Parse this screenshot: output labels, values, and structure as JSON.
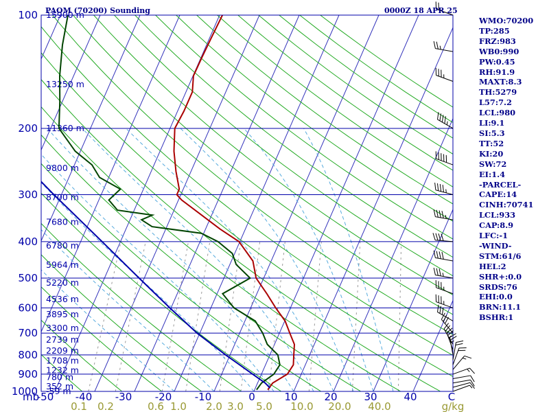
{
  "header": {
    "station": "PAOM (70200) Sounding",
    "datetime": "0000Z 18 APR 25"
  },
  "stats": [
    "WMO:70200",
    "TP:285",
    "FRZ:983",
    "WB0:990",
    "PW:0.45",
    "RH:91.9",
    "MAXT:8.3",
    "TH:5279",
    "L57:7.2",
    "LCL:980",
    "LI:9.1",
    "SI:5.3",
    "TT:52",
    "KI:20",
    "SW:72",
    "EI:1.4",
    "-PARCEL-",
    "CAPE:14",
    "CINH:70741",
    "LCL:933",
    "CAP:8.9",
    "LFC:-1",
    "-WIND-",
    "STM:61/6",
    "HEL:2",
    "SHR+:0.0",
    "SRDS:76",
    "EHI:0.0",
    "BRN:11.1",
    "BSHR:1"
  ],
  "colors": {
    "isobar": "#0000aa",
    "isotherm": "#3333bb",
    "dry_adiabat": "#22aa22",
    "moist_adiabat": "#55aadd",
    "mixing_ratio": "#999999",
    "temperature": "#aa0000",
    "dewpoint": "#004400",
    "parcel": "#0000aa",
    "wind_barb": "#000000"
  },
  "chart_data": {
    "type": "line",
    "diagram": "skew-T log-P",
    "y_axis": {
      "label": "mb",
      "scale": "log",
      "range": [
        1000,
        100
      ]
    },
    "pressure_ticks": [
      1000,
      900,
      800,
      700,
      600,
      500,
      400,
      300,
      200,
      100
    ],
    "x_axis": {
      "range": [
        -50,
        50
      ],
      "ticks": [
        "-50",
        "-40",
        "-30",
        "-20",
        "-10",
        "0",
        "10",
        "20",
        "30",
        "40",
        "C"
      ]
    },
    "mixing_ratio_ticks": [
      "0.1",
      "0.2",
      "0.6",
      "1.0",
      "2.0",
      "3.0",
      "5.0",
      "10.0",
      "20.0",
      "40.0",
      "g/kg"
    ],
    "height_labels": [
      {
        "p": 1000,
        "label": "-59 m"
      },
      {
        "p": 970,
        "label": "352 m"
      },
      {
        "p": 918,
        "label": "780 m"
      },
      {
        "p": 880,
        "label": "1232 m"
      },
      {
        "p": 830,
        "label": "1708 m"
      },
      {
        "p": 780,
        "label": "2209 m"
      },
      {
        "p": 730,
        "label": "2739 m"
      },
      {
        "p": 680,
        "label": "3300 m"
      },
      {
        "p": 625,
        "label": "3895 m"
      },
      {
        "p": 570,
        "label": "4536 m"
      },
      {
        "p": 515,
        "label": "5220 m"
      },
      {
        "p": 462,
        "label": "5964 m"
      },
      {
        "p": 410,
        "label": "6780 m"
      },
      {
        "p": 355,
        "label": "7680 m"
      },
      {
        "p": 305,
        "label": "8700 m"
      },
      {
        "p": 255,
        "label": "9800 m"
      },
      {
        "p": 200,
        "label": "11360 m"
      },
      {
        "p": 153,
        "label": "13250 m"
      },
      {
        "p": 100,
        "label": "15900 m"
      }
    ],
    "series": [
      {
        "key": "temperature",
        "points": [
          [
            990,
            3.3
          ],
          [
            950,
            3.8
          ],
          [
            900,
            6.5
          ],
          [
            850,
            7.0
          ],
          [
            800,
            6.0
          ],
          [
            750,
            5.0
          ],
          [
            700,
            2.6
          ],
          [
            650,
            0.1
          ],
          [
            600,
            -3.7
          ],
          [
            550,
            -7.5
          ],
          [
            500,
            -11.9
          ],
          [
            450,
            -14.6
          ],
          [
            400,
            -20.2
          ],
          [
            370,
            -26.4
          ],
          [
            340,
            -32.5
          ],
          [
            310,
            -39.2
          ],
          [
            300,
            -41.0
          ],
          [
            290,
            -41.0
          ],
          [
            260,
            -43.8
          ],
          [
            230,
            -46.5
          ],
          [
            200,
            -48.8
          ],
          [
            180,
            -48.4
          ],
          [
            160,
            -48.4
          ],
          [
            145,
            -49.9
          ],
          [
            130,
            -49.8
          ],
          [
            115,
            -49.6
          ],
          [
            100,
            -49.3
          ]
        ]
      },
      {
        "key": "dewpoint",
        "points": [
          [
            990,
            0.5
          ],
          [
            950,
            1.0
          ],
          [
            900,
            3.1
          ],
          [
            850,
            3.6
          ],
          [
            800,
            2.0
          ],
          [
            750,
            -1.8
          ],
          [
            700,
            -4.2
          ],
          [
            650,
            -7.4
          ],
          [
            600,
            -14.2
          ],
          [
            550,
            -18.6
          ],
          [
            500,
            -13.4
          ],
          [
            460,
            -18.4
          ],
          [
            430,
            -20.6
          ],
          [
            400,
            -25.5
          ],
          [
            380,
            -30.6
          ],
          [
            365,
            -43.7
          ],
          [
            350,
            -47.1
          ],
          [
            340,
            -44.9
          ],
          [
            330,
            -54.2
          ],
          [
            310,
            -57.5
          ],
          [
            290,
            -55.8
          ],
          [
            270,
            -62.3
          ],
          [
            250,
            -65.6
          ],
          [
            230,
            -71.3
          ],
          [
            200,
            -77.9
          ],
          [
            170,
            -80.6
          ],
          [
            145,
            -83.5
          ],
          [
            120,
            -86.2
          ],
          [
            100,
            -88.1
          ]
        ]
      },
      {
        "key": "parcel",
        "points": [
          [
            980,
            3.7
          ],
          [
            950,
            1.9
          ],
          [
            900,
            -2.2
          ],
          [
            850,
            -6.5
          ],
          [
            800,
            -11.1
          ],
          [
            700,
            -20.7
          ],
          [
            600,
            -30.3
          ],
          [
            500,
            -41.3
          ],
          [
            400,
            -54.6
          ],
          [
            300,
            -71.9
          ],
          [
            250,
            -82.5
          ],
          [
            200,
            -94.6
          ],
          [
            150,
            -108.9
          ],
          [
            120,
            -119.4
          ],
          [
            110,
            -123.5
          ]
        ]
      }
    ],
    "wind_barbs": [
      {
        "p": 1000,
        "dir": 70,
        "spd": 5
      },
      {
        "p": 975,
        "dir": 75,
        "spd": 10
      },
      {
        "p": 950,
        "dir": 80,
        "spd": 10
      },
      {
        "p": 925,
        "dir": 80,
        "spd": 10
      },
      {
        "p": 900,
        "dir": 70,
        "spd": 15
      },
      {
        "p": 875,
        "dir": 40,
        "spd": 15
      },
      {
        "p": 850,
        "dir": 20,
        "spd": 20
      },
      {
        "p": 825,
        "dir": 10,
        "spd": 20
      },
      {
        "p": 800,
        "dir": 350,
        "spd": 25
      },
      {
        "p": 775,
        "dir": 340,
        "spd": 25
      },
      {
        "p": 750,
        "dir": 330,
        "spd": 25
      },
      {
        "p": 700,
        "dir": 320,
        "spd": 30
      },
      {
        "p": 650,
        "dir": 300,
        "spd": 30
      },
      {
        "p": 600,
        "dir": 290,
        "spd": 35
      },
      {
        "p": 550,
        "dir": 290,
        "spd": 35
      },
      {
        "p": 500,
        "dir": 280,
        "spd": 35
      },
      {
        "p": 450,
        "dir": 280,
        "spd": 40
      },
      {
        "p": 400,
        "dir": 275,
        "spd": 40
      },
      {
        "p": 350,
        "dir": 280,
        "spd": 45
      },
      {
        "p": 300,
        "dir": 285,
        "spd": 45
      },
      {
        "p": 250,
        "dir": 290,
        "spd": 50
      },
      {
        "p": 200,
        "dir": 300,
        "spd": 45
      },
      {
        "p": 150,
        "dir": 290,
        "spd": 35
      },
      {
        "p": 125,
        "dir": 280,
        "spd": 25
      },
      {
        "p": 100,
        "dir": 290,
        "spd": 20
      }
    ]
  }
}
